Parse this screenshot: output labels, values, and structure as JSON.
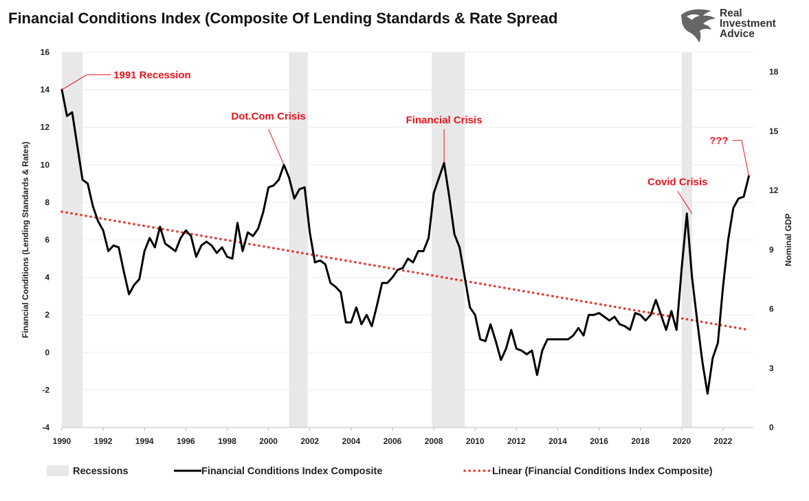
{
  "chart_data": {
    "type": "line",
    "title": "Financial Conditions Index (Composite Of Lending Standards & Rate Spread",
    "ylabel": "Financial Conditions (Lending Standards & Rates)",
    "y2label": "Nominal GDP",
    "xlim": [
      1990,
      2023.5
    ],
    "ylim": [
      -4,
      16
    ],
    "y2lim": [
      0,
      19
    ],
    "x_ticks": [
      "1990",
      "1992",
      "1994",
      "1996",
      "1998",
      "2000",
      "2002",
      "2004",
      "2006",
      "2008",
      "2010",
      "2012",
      "2014",
      "2016",
      "2018",
      "2020",
      "2022"
    ],
    "y_ticks": [
      "-4",
      "-2",
      "0",
      "2",
      "4",
      "6",
      "8",
      "10",
      "12",
      "14",
      "16"
    ],
    "y2_ticks": [
      "0",
      "3",
      "6",
      "9",
      "12",
      "15",
      "18"
    ],
    "recessions": [
      [
        1990.0,
        1991.0
      ],
      [
        2001.0,
        2001.9
      ],
      [
        2007.9,
        2009.5
      ],
      [
        2020.0,
        2020.5
      ]
    ],
    "legend": {
      "placement": "bottom",
      "recessions": "Recessions",
      "series": "Financial Conditions Index Composite",
      "trend": "Linear (Financial Conditions Index Composite)"
    },
    "series": [
      {
        "name": "Financial Conditions Index Composite",
        "color": "#000000",
        "x": [
          1990.0,
          1990.25,
          1990.5,
          1990.75,
          1991.0,
          1991.25,
          1991.5,
          1991.75,
          1992.0,
          1992.25,
          1992.5,
          1992.75,
          1993.0,
          1993.25,
          1993.5,
          1993.75,
          1994.0,
          1994.25,
          1994.5,
          1994.75,
          1995.0,
          1995.25,
          1995.5,
          1995.75,
          1996.0,
          1996.25,
          1996.5,
          1996.75,
          1997.0,
          1997.25,
          1997.5,
          1997.75,
          1998.0,
          1998.25,
          1998.5,
          1998.75,
          1999.0,
          1999.25,
          1999.5,
          1999.75,
          2000.0,
          2000.25,
          2000.5,
          2000.75,
          2001.0,
          2001.25,
          2001.5,
          2001.75,
          2002.0,
          2002.25,
          2002.5,
          2002.75,
          2003.0,
          2003.25,
          2003.5,
          2003.75,
          2004.0,
          2004.25,
          2004.5,
          2004.75,
          2005.0,
          2005.25,
          2005.5,
          2005.75,
          2006.0,
          2006.25,
          2006.5,
          2006.75,
          2007.0,
          2007.25,
          2007.5,
          2007.75,
          2008.0,
          2008.25,
          2008.5,
          2008.75,
          2009.0,
          2009.25,
          2009.5,
          2009.75,
          2010.0,
          2010.25,
          2010.5,
          2010.75,
          2011.0,
          2011.25,
          2011.5,
          2011.75,
          2012.0,
          2012.25,
          2012.5,
          2012.75,
          2013.0,
          2013.25,
          2013.5,
          2013.75,
          2014.0,
          2014.25,
          2014.5,
          2014.75,
          2015.0,
          2015.25,
          2015.5,
          2015.75,
          2016.0,
          2016.25,
          2016.5,
          2016.75,
          2017.0,
          2017.25,
          2017.5,
          2017.75,
          2018.0,
          2018.25,
          2018.5,
          2018.75,
          2019.0,
          2019.25,
          2019.5,
          2019.75,
          2020.0,
          2020.25,
          2020.5,
          2020.75,
          2021.0,
          2021.25,
          2021.5,
          2021.75,
          2022.0,
          2022.25,
          2022.5,
          2022.75,
          2023.0,
          2023.25
        ],
        "values": [
          14.0,
          12.6,
          12.8,
          11.0,
          9.2,
          9.0,
          7.8,
          7.0,
          6.5,
          5.4,
          5.7,
          5.6,
          4.3,
          3.1,
          3.6,
          3.9,
          5.4,
          6.1,
          5.6,
          6.7,
          5.8,
          5.6,
          5.4,
          6.1,
          6.5,
          6.2,
          5.1,
          5.7,
          5.9,
          5.7,
          5.3,
          5.6,
          5.1,
          5.0,
          6.9,
          5.4,
          6.4,
          6.2,
          6.6,
          7.5,
          8.8,
          8.9,
          9.2,
          10.0,
          9.3,
          8.2,
          8.7,
          8.8,
          6.4,
          4.8,
          4.9,
          4.7,
          3.7,
          3.5,
          3.2,
          1.6,
          1.6,
          2.4,
          1.5,
          2.0,
          1.4,
          2.5,
          3.7,
          3.7,
          4.0,
          4.4,
          4.5,
          5.0,
          4.8,
          5.4,
          5.4,
          6.1,
          8.5,
          9.3,
          10.1,
          8.3,
          6.3,
          5.6,
          4.0,
          2.4,
          2.0,
          0.7,
          0.6,
          1.5,
          0.6,
          -0.4,
          0.2,
          1.2,
          0.2,
          0.1,
          -0.1,
          0.1,
          -1.2,
          0.1,
          0.7,
          0.7,
          0.7,
          0.7,
          0.7,
          0.9,
          1.3,
          0.9,
          2.0,
          2.0,
          2.1,
          1.9,
          1.7,
          1.9,
          1.5,
          1.4,
          1.2,
          2.1,
          2.0,
          1.7,
          2.0,
          2.8,
          2.0,
          1.2,
          2.2,
          1.2,
          4.5,
          7.4,
          4.0,
          1.7,
          -0.5,
          -2.2,
          -0.3,
          0.5,
          3.5,
          6.0,
          7.7,
          8.2,
          8.3,
          9.4
        ]
      }
    ],
    "trend": {
      "start": [
        1990.0,
        7.5
      ],
      "end": [
        2023.25,
        1.2
      ],
      "color": "#e8342e"
    },
    "annotations": [
      {
        "text": "1991 Recession",
        "point": [
          1990.0,
          14.0
        ],
        "elbow": [
          1991.2,
          14.8
        ],
        "label_at": [
          1992.5,
          14.8
        ],
        "anchor": "start"
      },
      {
        "text": "Dot.Com Crisis",
        "point": [
          2000.75,
          10.0
        ],
        "elbow": [
          2000.0,
          11.9
        ],
        "label_at": [
          2000.0,
          12.6
        ],
        "anchor": "middle"
      },
      {
        "text": "Financial Crisis",
        "point": [
          2008.5,
          10.1
        ],
        "elbow": [
          2008.5,
          11.9
        ],
        "label_at": [
          2008.5,
          12.4
        ],
        "anchor": "middle"
      },
      {
        "text": "Covid Crisis",
        "point": [
          2020.5,
          7.4
        ],
        "elbow": [
          2019.8,
          8.6
        ],
        "label_at": [
          2019.8,
          9.1
        ],
        "anchor": "middle"
      },
      {
        "text": "???",
        "point": [
          2023.25,
          9.4
        ],
        "elbow": [
          2022.9,
          11.3
        ],
        "label_at": [
          2021.8,
          11.3
        ],
        "anchor": "middle"
      }
    ],
    "annotation_color": "#e8131b"
  },
  "brand": {
    "line1": "Real",
    "line2": "Investment",
    "line3": "Advice"
  }
}
